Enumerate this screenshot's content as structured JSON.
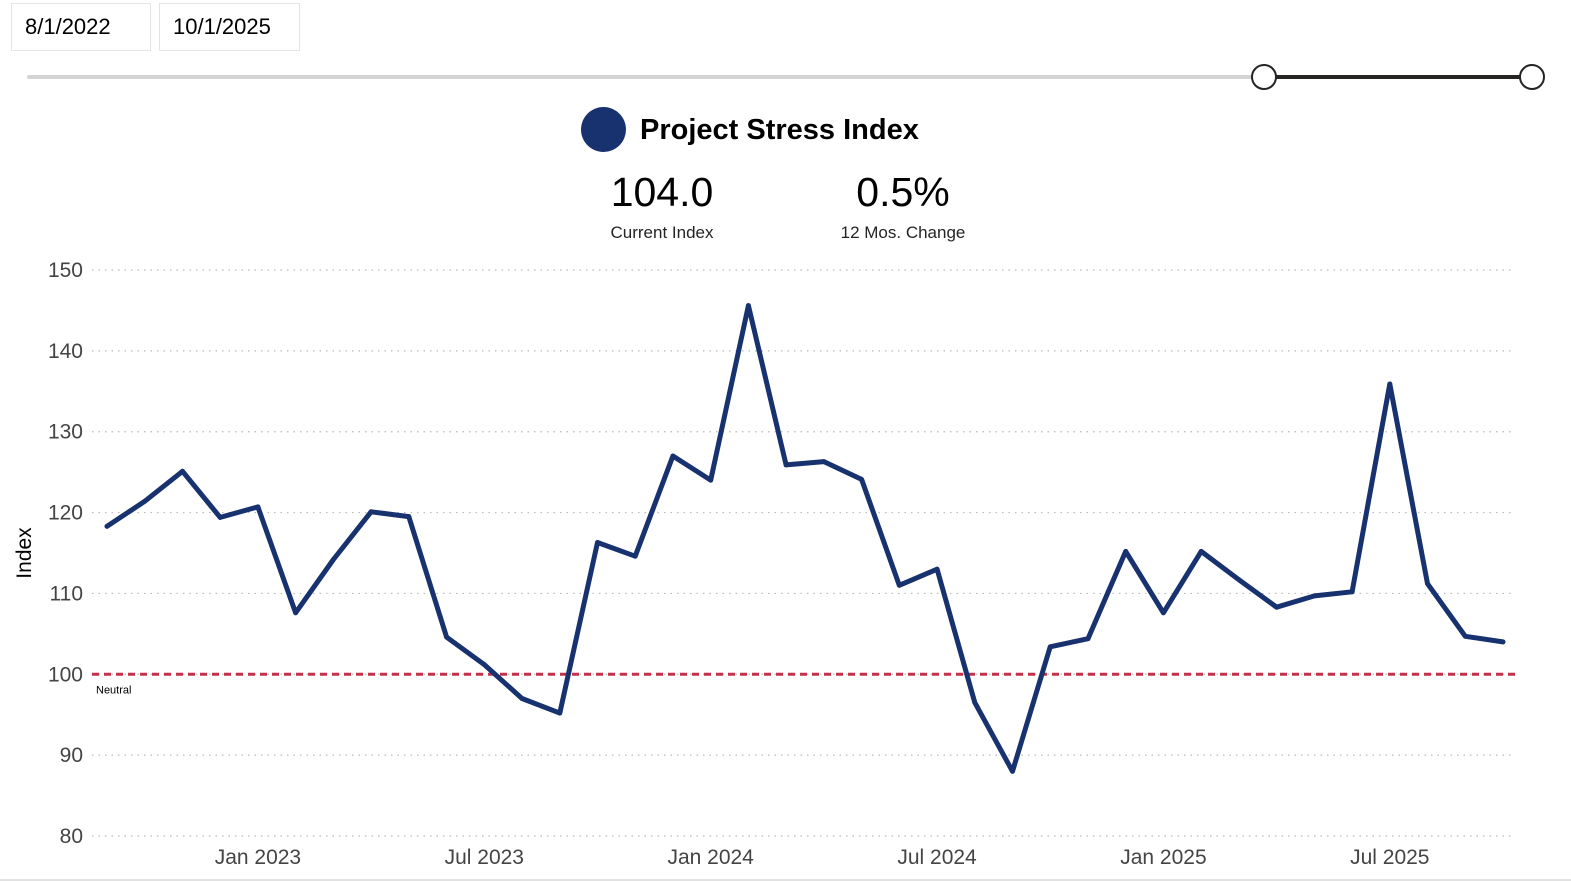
{
  "date_range": {
    "start": "8/1/2022",
    "end": "10/1/2025"
  },
  "legend": {
    "series_name": "Project Stress Index",
    "color": "#17326f"
  },
  "kpis": {
    "current_value": "104.0",
    "current_label": "Current Index",
    "change_value": "0.5%",
    "change_label": "12 Mos. Change"
  },
  "slider": {
    "range_start_fraction": 0.82,
    "range_end_fraction": 1.0
  },
  "chart_data": {
    "type": "line",
    "title": "Project Stress Index",
    "xlabel": "",
    "ylabel": "Index",
    "ylim": [
      80,
      150
    ],
    "yticks": [
      "80",
      "90",
      "100",
      "110",
      "120",
      "130",
      "140",
      "150"
    ],
    "x": [
      "2022-09",
      "2022-10",
      "2022-11",
      "2022-12",
      "2023-01",
      "2023-02",
      "2023-03",
      "2023-04",
      "2023-05",
      "2023-06",
      "2023-07",
      "2023-08",
      "2023-09",
      "2023-10",
      "2023-11",
      "2023-12",
      "2024-01",
      "2024-02",
      "2024-03",
      "2024-04",
      "2024-05",
      "2024-06",
      "2024-07",
      "2024-08",
      "2024-09",
      "2024-10",
      "2024-11",
      "2024-12",
      "2025-01",
      "2025-02",
      "2025-03",
      "2025-04",
      "2025-05",
      "2025-06",
      "2025-07",
      "2025-08",
      "2025-09",
      "2025-10"
    ],
    "xticks": [
      {
        "label": "Jan 2023",
        "index": 4
      },
      {
        "label": "Jul 2023",
        "index": 10
      },
      {
        "label": "Jan 2024",
        "index": 16
      },
      {
        "label": "Jul 2024",
        "index": 22
      },
      {
        "label": "Jan 2025",
        "index": 28
      },
      {
        "label": "Jul 2025",
        "index": 34
      }
    ],
    "series": [
      {
        "name": "Project Stress Index",
        "color": "#17326f",
        "values": [
          118.3,
          121.4,
          125.1,
          119.4,
          120.7,
          107.6,
          114.2,
          120.1,
          119.5,
          104.6,
          101.2,
          97.0,
          95.2,
          116.3,
          114.6,
          127.0,
          124.0,
          145.6,
          125.9,
          126.3,
          124.1,
          111.0,
          113.0,
          96.5,
          88.0,
          103.4,
          104.4,
          115.2,
          107.6,
          115.2,
          111.7,
          108.3,
          109.7,
          110.2,
          135.9,
          111.2,
          104.7,
          104.0
        ]
      }
    ],
    "reference_line": {
      "value": 100,
      "label": "Neutral",
      "color": "#c4314b"
    },
    "grid": true
  }
}
